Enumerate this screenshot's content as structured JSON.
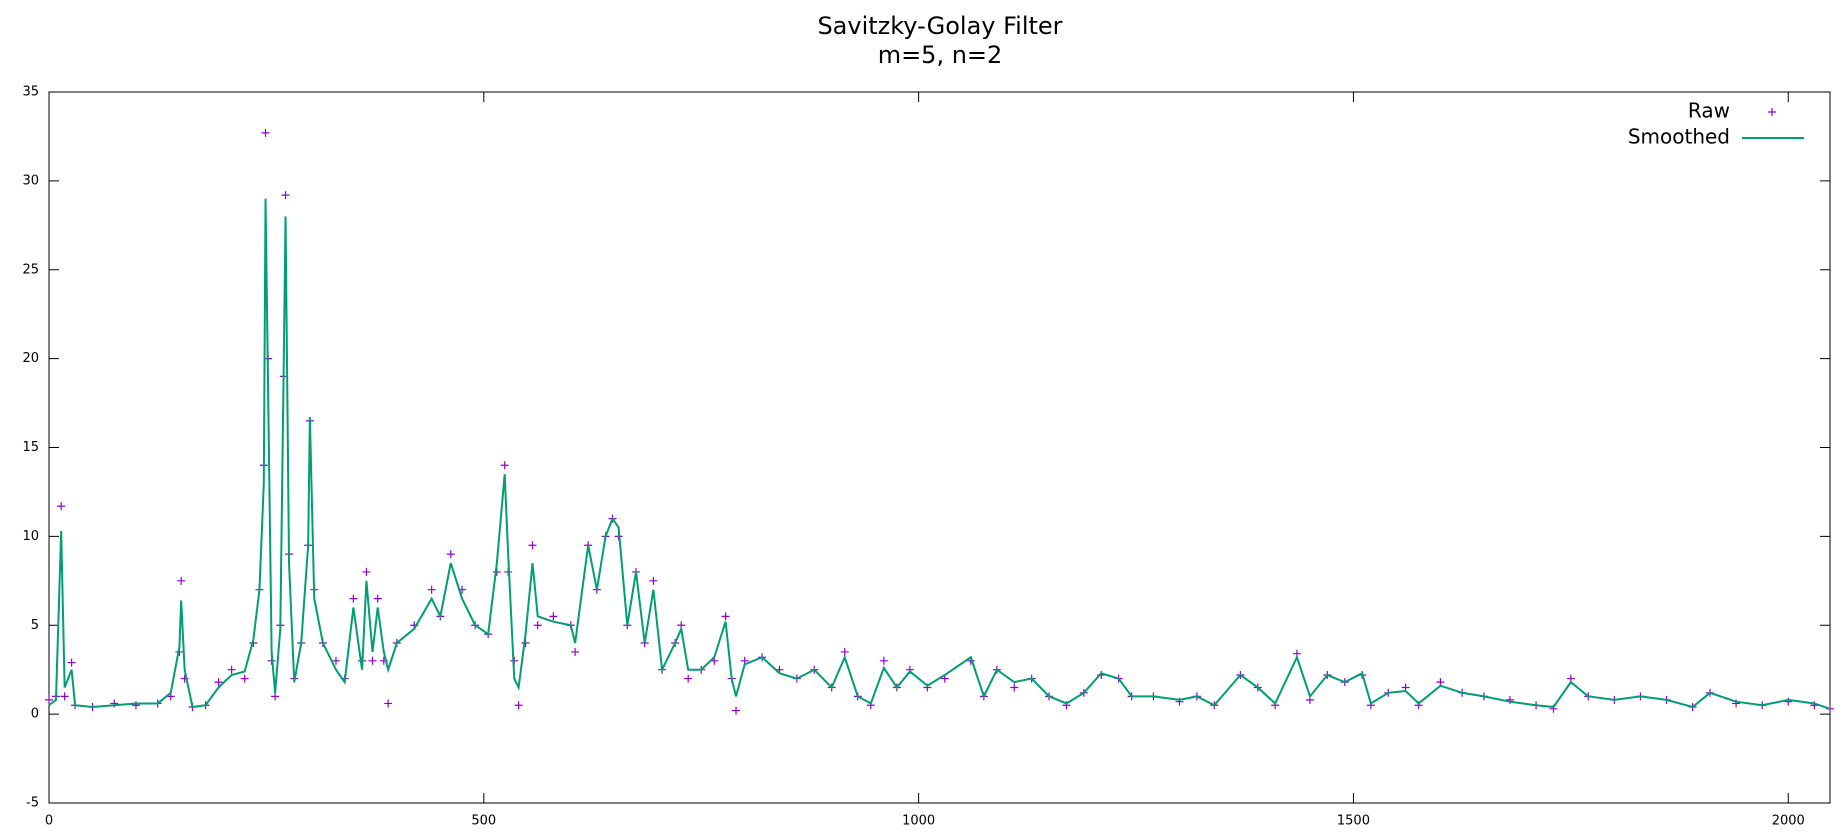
{
  "chart_data": {
    "type": "line",
    "title": "Savitzky-Golay Filter",
    "subtitle": "m=5, n=2",
    "x": [
      0,
      8,
      14,
      18,
      26,
      30,
      50,
      75,
      100,
      125,
      140,
      150,
      152,
      156,
      165,
      180,
      195,
      210,
      225,
      235,
      242,
      247,
      249,
      252,
      256,
      260,
      266,
      270,
      272,
      276,
      282,
      290,
      298,
      300,
      305,
      315,
      330,
      340,
      350,
      360,
      365,
      372,
      378,
      385,
      390,
      400,
      420,
      440,
      450,
      462,
      475,
      490,
      505,
      515,
      524,
      528,
      535,
      540,
      548,
      556,
      562,
      580,
      600,
      605,
      620,
      630,
      640,
      648,
      655,
      665,
      675,
      685,
      695,
      705,
      720,
      727,
      735,
      750,
      765,
      778,
      785,
      790,
      800,
      820,
      840,
      860,
      880,
      900,
      915,
      930,
      945,
      960,
      975,
      990,
      1010,
      1030,
      1060,
      1075,
      1090,
      1110,
      1130,
      1150,
      1170,
      1190,
      1210,
      1230,
      1245,
      1270,
      1300,
      1320,
      1340,
      1370,
      1390,
      1410,
      1435,
      1450,
      1470,
      1490,
      1510,
      1520,
      1540,
      1560,
      1575,
      1600,
      1625,
      1650,
      1680,
      1710,
      1730,
      1750,
      1770,
      1800,
      1830,
      1860,
      1890,
      1910,
      1940,
      1970,
      2000,
      2030,
      2048
    ],
    "series": [
      {
        "name": "Raw",
        "color": "#9400d3",
        "style": "points",
        "values": [
          0.8,
          1.0,
          11.7,
          1.0,
          2.9,
          0.5,
          0.4,
          0.6,
          0.5,
          0.6,
          1.0,
          3.5,
          7.5,
          2.0,
          0.4,
          0.5,
          1.8,
          2.5,
          2.0,
          4.0,
          7.0,
          14,
          32.7,
          20,
          3,
          1.0,
          5,
          19,
          29.2,
          9,
          2,
          4,
          9.5,
          16.5,
          7,
          4,
          3,
          2,
          6.5,
          3,
          8,
          3,
          6.5,
          3,
          0.6,
          4,
          5,
          7,
          5.5,
          9,
          7,
          5,
          4.5,
          8,
          14,
          8,
          3,
          0.5,
          4,
          9.5,
          5,
          5.5,
          5,
          3.5,
          9.5,
          7,
          10,
          11,
          10,
          5,
          8,
          4,
          7.5,
          2.5,
          4,
          5,
          2,
          2.5,
          3,
          5.5,
          2,
          0.2,
          3,
          3.2,
          2.5,
          2,
          2.5,
          1.5,
          3.5,
          1,
          0.5,
          3,
          1.5,
          2.5,
          1.5,
          2,
          3,
          1,
          2.5,
          1.5,
          2,
          1,
          0.5,
          1.2,
          2.2,
          2,
          1,
          1,
          0.7,
          1,
          0.5,
          2.2,
          1.5,
          0.5,
          3.4,
          0.8,
          2.2,
          1.8,
          2.2,
          0.5,
          1.2,
          1.5,
          0.5,
          1.8,
          1.2,
          1,
          0.8,
          0.5,
          0.3,
          2,
          1,
          0.8,
          1,
          0.8,
          0.4,
          1.2,
          0.6,
          0.5,
          0.7,
          0.5,
          0.3
        ]
      },
      {
        "name": "Smoothed",
        "color": "#009e73",
        "style": "lines",
        "values": [
          0.5,
          0.8,
          10.3,
          1.5,
          2.5,
          0.5,
          0.4,
          0.5,
          0.6,
          0.6,
          1.2,
          3.8,
          6.4,
          2.5,
          0.4,
          0.5,
          1.5,
          2.2,
          2.4,
          4.2,
          7.0,
          13,
          29,
          18,
          3.5,
          1.2,
          4.8,
          20,
          28,
          8.5,
          1.8,
          4,
          9.5,
          16.7,
          6.5,
          4,
          2.5,
          1.8,
          6,
          2.5,
          7.5,
          3.5,
          6,
          3.5,
          2.5,
          4,
          4.8,
          6.5,
          5.5,
          8.5,
          6.5,
          5,
          4.5,
          8.5,
          13.5,
          9,
          2,
          1.5,
          4.5,
          8.5,
          5.5,
          5.2,
          5.0,
          4,
          9.5,
          7,
          10,
          11,
          10.5,
          5,
          8,
          4,
          7,
          2.5,
          4,
          4.8,
          2.5,
          2.5,
          3.2,
          5.2,
          2,
          1,
          2.8,
          3.2,
          2.3,
          2,
          2.5,
          1.5,
          3.2,
          1,
          0.6,
          2.6,
          1.5,
          2.4,
          1.6,
          2.2,
          3.2,
          1,
          2.5,
          1.8,
          2,
          1,
          0.6,
          1.2,
          2.3,
          2,
          1,
          1,
          0.8,
          1,
          0.5,
          2.2,
          1.5,
          0.6,
          3.2,
          1,
          2.2,
          1.8,
          2.3,
          0.6,
          1.2,
          1.3,
          0.6,
          1.6,
          1.2,
          1,
          0.7,
          0.5,
          0.4,
          1.8,
          1,
          0.8,
          1,
          0.8,
          0.4,
          1.2,
          0.7,
          0.5,
          0.8,
          0.6,
          0.3
        ]
      }
    ],
    "xlim": [
      0,
      2048
    ],
    "xticks": [
      0,
      500,
      1000,
      1500,
      2000
    ],
    "ylim": [
      -5,
      35
    ],
    "yticks": [
      -5,
      0,
      5,
      10,
      15,
      20,
      25,
      30,
      35
    ],
    "legend": "top-right"
  }
}
